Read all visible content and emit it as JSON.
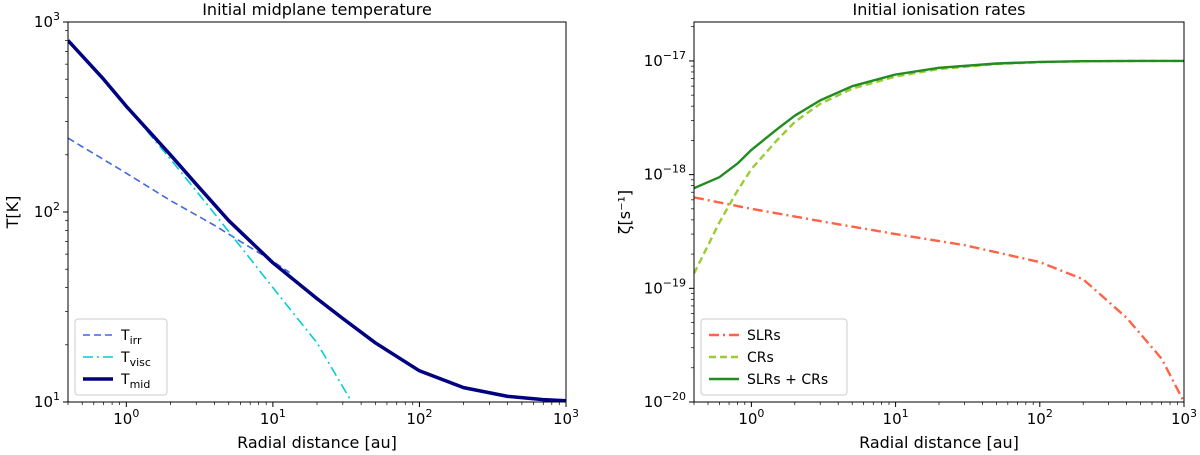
{
  "chart_data": [
    {
      "type": "line",
      "title": "Initial midplane temperature",
      "xlabel": "Radial distance [au]",
      "ylabel": "T[K]",
      "xscale": "log",
      "yscale": "log",
      "xlim": [
        0.4,
        1000
      ],
      "ylim": [
        10,
        1000
      ],
      "xticks": [
        {
          "value": 1,
          "base": "10",
          "exp": "0"
        },
        {
          "value": 10,
          "base": "10",
          "exp": "1"
        },
        {
          "value": 100,
          "base": "10",
          "exp": "2"
        },
        {
          "value": 1000,
          "base": "10",
          "exp": "3"
        }
      ],
      "yticks": [
        {
          "value": 10,
          "base": "10",
          "exp": "1"
        },
        {
          "value": 100,
          "base": "10",
          "exp": "2"
        },
        {
          "value": 1000,
          "base": "10",
          "exp": "3"
        }
      ],
      "legend_position": "lower-left",
      "series": [
        {
          "name": "T",
          "sub": "irr",
          "color": "#4169E1",
          "style": "dashed",
          "width": 1.6,
          "x": [
            0.4,
            1,
            2,
            4,
            6,
            10,
            13
          ],
          "y": [
            245,
            160,
            115,
            85,
            70,
            55,
            48
          ]
        },
        {
          "name": "T",
          "sub": "visc",
          "color": "#00CED1",
          "style": "dashdot",
          "width": 1.6,
          "x": [
            0.4,
            1,
            2,
            4,
            10,
            20,
            34.5
          ],
          "y": [
            800,
            360,
            190,
            98,
            40,
            20.5,
            10
          ]
        },
        {
          "name": "T",
          "sub": "mid",
          "color": "#000080",
          "style": "solid",
          "width": 3.5,
          "x": [
            0.4,
            0.7,
            1,
            2,
            3,
            5,
            10,
            20,
            30,
            50,
            100,
            200,
            400,
            700,
            1000
          ],
          "y": [
            800,
            500,
            360,
            200,
            140,
            90,
            54,
            35,
            27.5,
            20.5,
            14.6,
            11.9,
            10.7,
            10.3,
            10.15
          ]
        }
      ]
    },
    {
      "type": "line",
      "title": "Initial ionisation rates",
      "xlabel": "Radial distance [au]",
      "ylabel": "ζ[s⁻¹]",
      "xscale": "log",
      "yscale": "log",
      "xlim": [
        0.4,
        1000
      ],
      "ylim": [
        1e-20,
        2.2e-17
      ],
      "xticks": [
        {
          "value": 1,
          "base": "10",
          "exp": "0"
        },
        {
          "value": 10,
          "base": "10",
          "exp": "1"
        },
        {
          "value": 100,
          "base": "10",
          "exp": "2"
        },
        {
          "value": 1000,
          "base": "10",
          "exp": "3"
        }
      ],
      "yticks": [
        {
          "value": 1e-20,
          "base": "10",
          "exp": "−20"
        },
        {
          "value": 1e-19,
          "base": "10",
          "exp": "−19"
        },
        {
          "value": 1e-18,
          "base": "10",
          "exp": "−18"
        },
        {
          "value": 1e-17,
          "base": "10",
          "exp": "−17"
        }
      ],
      "legend_position": "lower-left",
      "series": [
        {
          "name": "SLRs",
          "sub": "",
          "color": "#FF6347",
          "style": "dashdot",
          "width": 2.4,
          "x": [
            0.4,
            1,
            3,
            10,
            30,
            100,
            200,
            400,
            700,
            1000
          ],
          "y": [
            6.3e-19,
            5e-19,
            3.9e-19,
            3e-19,
            2.4e-19,
            1.7e-19,
            1.2e-19,
            5.5e-20,
            2.4e-20,
            1e-20
          ]
        },
        {
          "name": "CRs",
          "sub": "",
          "color": "#9ACD32",
          "style": "dashed",
          "width": 2.4,
          "x": [
            0.4,
            0.6,
            0.8,
            1,
            1.5,
            2,
            3,
            5,
            10,
            20,
            50,
            100,
            200,
            500,
            1000
          ],
          "y": [
            1.35e-19,
            3.8e-19,
            7.2e-19,
            1.12e-18,
            2e-18,
            2.9e-18,
            4.2e-18,
            5.7e-18,
            7.3e-18,
            8.5e-18,
            9.4e-18,
            9.75e-18,
            9.92e-18,
            1e-17,
            1e-17
          ]
        },
        {
          "name": "SLRs + CRs",
          "sub": "",
          "color": "#228B22",
          "style": "solid",
          "width": 2.4,
          "x": [
            0.4,
            0.6,
            0.8,
            1,
            1.5,
            2,
            3,
            5,
            10,
            20,
            50,
            100,
            200,
            500,
            1000
          ],
          "y": [
            7.6e-19,
            9.5e-19,
            1.25e-18,
            1.65e-18,
            2.5e-18,
            3.3e-18,
            4.5e-18,
            6e-18,
            7.6e-18,
            8.7e-18,
            9.5e-18,
            9.8e-18,
            9.95e-18,
            1e-17,
            1e-17
          ]
        }
      ]
    }
  ]
}
